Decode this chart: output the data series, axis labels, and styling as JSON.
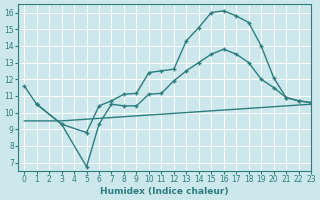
{
  "bg_color": "#cce8ec",
  "grid_color": "#ffffff",
  "line_color": "#2e7d7d",
  "xlim": [
    -0.5,
    23
  ],
  "ylim": [
    6.5,
    16.5
  ],
  "xlabel": "Humidex (Indice chaleur)",
  "xticks": [
    0,
    1,
    2,
    3,
    4,
    5,
    6,
    7,
    8,
    9,
    10,
    11,
    12,
    13,
    14,
    15,
    16,
    17,
    18,
    19,
    20,
    21,
    22,
    23
  ],
  "yticks": [
    7,
    8,
    9,
    10,
    11,
    12,
    13,
    14,
    15,
    16
  ],
  "line1_x": [
    0,
    1,
    3,
    5,
    6,
    7,
    8,
    9,
    10,
    11,
    12,
    13,
    14,
    15,
    16,
    17,
    18,
    19,
    20,
    21,
    22,
    23
  ],
  "line1_y": [
    11.6,
    10.5,
    9.3,
    8.8,
    10.4,
    10.7,
    11.1,
    11.15,
    12.4,
    12.5,
    12.6,
    14.3,
    15.1,
    16.0,
    16.1,
    15.8,
    15.4,
    14.0,
    12.1,
    10.9,
    10.7,
    10.6
  ],
  "line2_x": [
    1,
    3,
    5,
    6,
    7,
    8,
    9,
    10,
    11,
    12,
    13,
    14,
    15,
    16,
    17,
    18,
    19,
    20,
    21,
    22,
    23
  ],
  "line2_y": [
    10.5,
    9.3,
    6.75,
    9.3,
    10.5,
    10.4,
    10.4,
    11.1,
    11.15,
    11.9,
    12.5,
    13.0,
    13.5,
    13.8,
    13.5,
    13.0,
    12.0,
    11.5,
    10.9,
    10.7,
    10.6
  ],
  "line3_x": [
    0,
    1,
    3,
    5,
    7,
    9,
    11,
    13,
    15,
    17,
    19,
    21,
    23
  ],
  "line3_y": [
    9.5,
    9.5,
    9.5,
    9.6,
    9.7,
    9.8,
    9.9,
    10.0,
    10.1,
    10.2,
    10.3,
    10.4,
    10.5
  ]
}
